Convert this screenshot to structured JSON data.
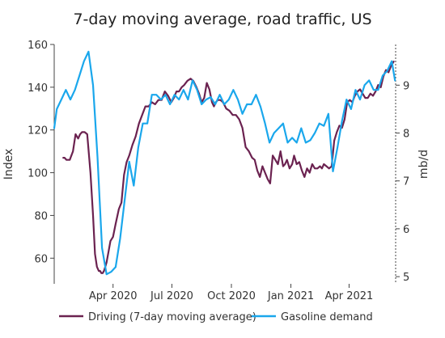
{
  "chart_data": {
    "type": "line",
    "title": "7-day moving average, road traffic, US",
    "ylabel_left": "Index",
    "ylabel_right": "mb/d",
    "ylim_left": [
      48,
      160
    ],
    "ylim_right": [
      4.85,
      9.85
    ],
    "left_ticks": [
      "60",
      "80",
      "100",
      "120",
      "140",
      "160"
    ],
    "right_ticks": [
      "5",
      "6",
      "7",
      "8",
      "9"
    ],
    "x_ticks": [
      "Apr 2020",
      "Jul 2020",
      "Oct 2020",
      "Jan 2021",
      "Apr 2021"
    ],
    "x_tick_dates": [
      "2020-04-01",
      "2020-07-01",
      "2020-10-01",
      "2021-01-01",
      "2021-04-01"
    ],
    "xlim": [
      "2020-01-01",
      "2021-06-12"
    ],
    "legend_position": "bottom",
    "grid": false,
    "colors": {
      "driving": "#6b2250",
      "gasoline": "#1aa7ec"
    },
    "series": [
      {
        "name": "Driving (7-day moving average)",
        "axis": "left",
        "x": [
          "2020-01-15",
          "2020-01-17",
          "2020-01-20",
          "2020-01-25",
          "2020-01-30",
          "2020-02-03",
          "2020-02-07",
          "2020-02-10",
          "2020-02-13",
          "2020-02-17",
          "2020-02-21",
          "2020-02-26",
          "2020-03-01",
          "2020-03-04",
          "2020-03-07",
          "2020-03-10",
          "2020-03-12",
          "2020-03-14",
          "2020-03-16",
          "2020-03-18",
          "2020-03-20",
          "2020-03-22",
          "2020-03-25",
          "2020-03-28",
          "2020-04-01",
          "2020-04-05",
          "2020-04-10",
          "2020-04-14",
          "2020-04-18",
          "2020-04-22",
          "2020-04-26",
          "2020-05-01",
          "2020-05-06",
          "2020-05-11",
          "2020-05-16",
          "2020-05-21",
          "2020-05-26",
          "2020-05-31",
          "2020-06-05",
          "2020-06-10",
          "2020-06-15",
          "2020-06-20",
          "2020-06-25",
          "2020-06-30",
          "2020-07-04",
          "2020-07-08",
          "2020-07-12",
          "2020-07-16",
          "2020-07-20",
          "2020-07-25",
          "2020-07-30",
          "2020-08-03",
          "2020-08-08",
          "2020-08-12",
          "2020-08-16",
          "2020-08-20",
          "2020-08-24",
          "2020-08-28",
          "2020-09-01",
          "2020-09-04",
          "2020-09-07",
          "2020-09-10",
          "2020-09-14",
          "2020-09-18",
          "2020-09-23",
          "2020-09-28",
          "2020-10-03",
          "2020-10-08",
          "2020-10-13",
          "2020-10-18",
          "2020-10-23",
          "2020-10-28",
          "2020-11-02",
          "2020-11-06",
          "2020-11-10",
          "2020-11-14",
          "2020-11-18",
          "2020-11-22",
          "2020-11-26",
          "2020-11-30",
          "2020-12-04",
          "2020-12-08",
          "2020-12-12",
          "2020-12-16",
          "2020-12-20",
          "2020-12-23",
          "2020-12-26",
          "2020-12-30",
          "2021-01-03",
          "2021-01-06",
          "2021-01-10",
          "2021-01-14",
          "2021-01-18",
          "2021-01-22",
          "2021-01-26",
          "2021-01-30",
          "2021-02-03",
          "2021-02-07",
          "2021-02-11",
          "2021-02-15",
          "2021-02-18",
          "2021-02-21",
          "2021-02-25",
          "2021-03-01",
          "2021-03-05",
          "2021-03-09",
          "2021-03-13",
          "2021-03-17",
          "2021-03-21",
          "2021-03-25",
          "2021-03-29",
          "2021-04-02",
          "2021-04-06",
          "2021-04-10",
          "2021-04-14",
          "2021-04-18",
          "2021-04-22",
          "2021-04-26",
          "2021-04-30",
          "2021-05-04",
          "2021-05-08",
          "2021-05-12",
          "2021-05-16",
          "2021-05-20",
          "2021-05-24",
          "2021-05-28",
          "2021-06-01",
          "2021-06-05",
          "2021-06-09"
        ],
        "values": [
          107,
          107,
          106,
          106,
          110,
          118,
          116,
          118,
          119,
          119,
          118,
          100,
          80,
          62,
          56,
          54,
          54,
          53,
          53,
          54,
          56,
          58,
          63,
          68,
          70,
          76,
          83,
          86,
          99,
          105,
          108,
          113,
          117,
          123,
          127,
          131,
          131,
          133,
          132,
          134,
          134,
          138,
          136,
          133,
          135,
          138,
          138,
          140,
          141,
          143,
          144,
          143,
          140,
          137,
          133,
          135,
          142,
          139,
          133,
          131,
          133,
          134,
          134,
          133,
          130,
          129,
          127,
          127,
          125,
          121,
          112,
          110,
          107,
          106,
          101,
          98,
          103,
          100,
          97,
          95,
          108,
          106,
          104,
          110,
          103,
          104,
          106,
          102,
          104,
          108,
          104,
          105,
          101,
          98,
          102,
          100,
          104,
          102,
          102,
          103,
          102,
          104,
          103,
          102,
          103,
          115,
          119,
          122,
          121,
          125,
          133,
          134,
          133,
          136,
          138,
          139,
          137,
          135,
          135,
          137,
          136,
          138,
          141,
          140,
          145,
          148,
          147,
          150,
          152
        ]
      },
      {
        "name": "Gasoline demand",
        "axis": "right",
        "x": [
          "2020-01-01",
          "2020-01-05",
          "2020-01-12",
          "2020-01-19",
          "2020-01-26",
          "2020-02-02",
          "2020-02-09",
          "2020-02-16",
          "2020-02-23",
          "2020-03-01",
          "2020-03-08",
          "2020-03-15",
          "2020-03-22",
          "2020-03-29",
          "2020-04-05",
          "2020-04-12",
          "2020-04-19",
          "2020-04-26",
          "2020-05-03",
          "2020-05-10",
          "2020-05-17",
          "2020-05-24",
          "2020-05-31",
          "2020-06-07",
          "2020-06-14",
          "2020-06-21",
          "2020-06-28",
          "2020-07-05",
          "2020-07-12",
          "2020-07-19",
          "2020-07-26",
          "2020-08-02",
          "2020-08-09",
          "2020-08-16",
          "2020-08-23",
          "2020-08-30",
          "2020-09-06",
          "2020-09-13",
          "2020-09-20",
          "2020-09-27",
          "2020-10-04",
          "2020-10-11",
          "2020-10-18",
          "2020-10-25",
          "2020-11-01",
          "2020-11-08",
          "2020-11-15",
          "2020-11-22",
          "2020-11-29",
          "2020-12-06",
          "2020-12-13",
          "2020-12-20",
          "2020-12-27",
          "2021-01-03",
          "2021-01-10",
          "2021-01-17",
          "2021-01-24",
          "2021-01-31",
          "2021-02-07",
          "2021-02-14",
          "2021-02-21",
          "2021-02-28",
          "2021-03-07",
          "2021-03-14",
          "2021-03-21",
          "2021-03-28",
          "2021-04-04",
          "2021-04-11",
          "2021-04-18",
          "2021-04-25",
          "2021-05-02",
          "2021-05-09",
          "2021-05-16",
          "2021-05-23",
          "2021-05-30",
          "2021-06-06",
          "2021-06-11"
        ],
        "values": [
          8.1,
          8.5,
          8.7,
          8.9,
          8.7,
          8.9,
          9.2,
          9.5,
          9.7,
          9.0,
          7.5,
          5.6,
          5.05,
          5.1,
          5.2,
          5.8,
          6.6,
          7.4,
          6.9,
          7.7,
          8.2,
          8.2,
          8.8,
          8.8,
          8.7,
          8.8,
          8.6,
          8.8,
          8.7,
          8.9,
          8.7,
          9.1,
          8.9,
          8.6,
          8.7,
          8.75,
          8.6,
          8.8,
          8.6,
          8.7,
          8.9,
          8.7,
          8.4,
          8.6,
          8.6,
          8.8,
          8.55,
          8.2,
          7.8,
          8.0,
          8.1,
          8.2,
          7.8,
          7.9,
          7.8,
          8.1,
          7.8,
          7.85,
          8.0,
          8.2,
          8.15,
          8.4,
          7.2,
          7.7,
          8.25,
          8.7,
          8.5,
          8.9,
          8.7,
          9.0,
          9.1,
          8.9,
          8.9,
          9.2,
          9.3,
          9.5,
          9.1
        ]
      }
    ]
  }
}
